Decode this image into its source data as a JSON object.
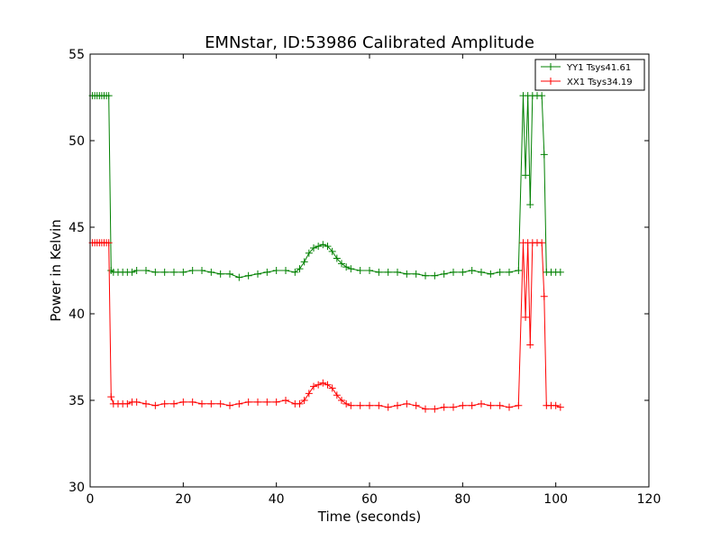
{
  "chart_data": {
    "type": "line",
    "title": "EMNstar, ID:53986 Calibrated Amplitude",
    "xlabel": "Time (seconds)",
    "ylabel": "Power in Kelvin",
    "xlim": [
      0,
      120
    ],
    "ylim": [
      30,
      55
    ],
    "xticks": [
      0,
      20,
      40,
      60,
      80,
      100,
      120
    ],
    "yticks": [
      30,
      35,
      40,
      45,
      50,
      55
    ],
    "grid": false,
    "legend_position": "top-right",
    "series": [
      {
        "name": "YY1 Tsys41.61",
        "color": "#008000",
        "marker": "+",
        "x": [
          0.5,
          1.0,
          1.5,
          2.0,
          2.5,
          3.0,
          3.5,
          4.0,
          4.5,
          5.0,
          6.0,
          7.0,
          8.0,
          9.0,
          10.0,
          12.0,
          14.0,
          16.0,
          18.0,
          20.0,
          22.0,
          24.0,
          26.0,
          28.0,
          30.0,
          32.0,
          34.0,
          36.0,
          38.0,
          40.0,
          42.0,
          44.0,
          45.0,
          46.0,
          47.0,
          48.0,
          49.0,
          50.0,
          51.0,
          52.0,
          53.0,
          54.0,
          55.0,
          56.0,
          58.0,
          60.0,
          62.0,
          64.0,
          66.0,
          68.0,
          70.0,
          72.0,
          74.0,
          76.0,
          78.0,
          80.0,
          82.0,
          84.0,
          86.0,
          88.0,
          90.0,
          92.0,
          93.0,
          93.5,
          94.0,
          94.5,
          95.0,
          96.0,
          97.0,
          97.5,
          98.0,
          99.0,
          100.0,
          101.0
        ],
        "values": [
          52.6,
          52.6,
          52.6,
          52.6,
          52.6,
          52.6,
          52.6,
          52.6,
          42.5,
          42.4,
          42.4,
          42.4,
          42.4,
          42.4,
          42.5,
          42.5,
          42.4,
          42.4,
          42.4,
          42.4,
          42.5,
          42.5,
          42.4,
          42.3,
          42.3,
          42.1,
          42.2,
          42.3,
          42.4,
          42.5,
          42.5,
          42.4,
          42.6,
          43.0,
          43.5,
          43.8,
          43.9,
          44.0,
          43.9,
          43.6,
          43.2,
          42.9,
          42.7,
          42.6,
          42.5,
          42.5,
          42.4,
          42.4,
          42.4,
          42.3,
          42.3,
          42.2,
          42.2,
          42.3,
          42.4,
          42.4,
          42.5,
          42.4,
          42.3,
          42.4,
          42.4,
          42.5,
          52.6,
          48.0,
          52.6,
          46.3,
          52.6,
          52.6,
          52.6,
          49.2,
          42.4,
          42.4,
          42.4,
          42.4
        ]
      },
      {
        "name": "XX1 Tsys34.19",
        "color": "#ff0000",
        "marker": "+",
        "x": [
          0.5,
          1.0,
          1.5,
          2.0,
          2.5,
          3.0,
          3.5,
          4.0,
          4.5,
          5.0,
          6.0,
          7.0,
          8.0,
          9.0,
          10.0,
          12.0,
          14.0,
          16.0,
          18.0,
          20.0,
          22.0,
          24.0,
          26.0,
          28.0,
          30.0,
          32.0,
          34.0,
          36.0,
          38.0,
          40.0,
          42.0,
          44.0,
          45.0,
          46.0,
          47.0,
          48.0,
          49.0,
          50.0,
          51.0,
          52.0,
          53.0,
          54.0,
          55.0,
          56.0,
          58.0,
          60.0,
          62.0,
          64.0,
          66.0,
          68.0,
          70.0,
          72.0,
          74.0,
          76.0,
          78.0,
          80.0,
          82.0,
          84.0,
          86.0,
          88.0,
          90.0,
          92.0,
          93.0,
          93.5,
          94.0,
          94.5,
          95.0,
          96.0,
          97.0,
          97.5,
          98.0,
          99.0,
          100.0,
          101.0
        ],
        "values": [
          44.1,
          44.1,
          44.1,
          44.1,
          44.1,
          44.1,
          44.1,
          44.1,
          35.2,
          34.8,
          34.8,
          34.8,
          34.8,
          34.9,
          34.9,
          34.8,
          34.7,
          34.8,
          34.8,
          34.9,
          34.9,
          34.8,
          34.8,
          34.8,
          34.7,
          34.8,
          34.9,
          34.9,
          34.9,
          34.9,
          35.0,
          34.8,
          34.8,
          35.0,
          35.4,
          35.8,
          35.9,
          36.0,
          35.9,
          35.7,
          35.3,
          35.0,
          34.8,
          34.7,
          34.7,
          34.7,
          34.7,
          34.6,
          34.7,
          34.8,
          34.7,
          34.5,
          34.5,
          34.6,
          34.6,
          34.7,
          34.7,
          34.8,
          34.7,
          34.7,
          34.6,
          34.7,
          44.1,
          39.8,
          44.1,
          38.2,
          44.1,
          44.1,
          44.1,
          41.0,
          34.7,
          34.7,
          34.7,
          34.6
        ]
      }
    ]
  }
}
